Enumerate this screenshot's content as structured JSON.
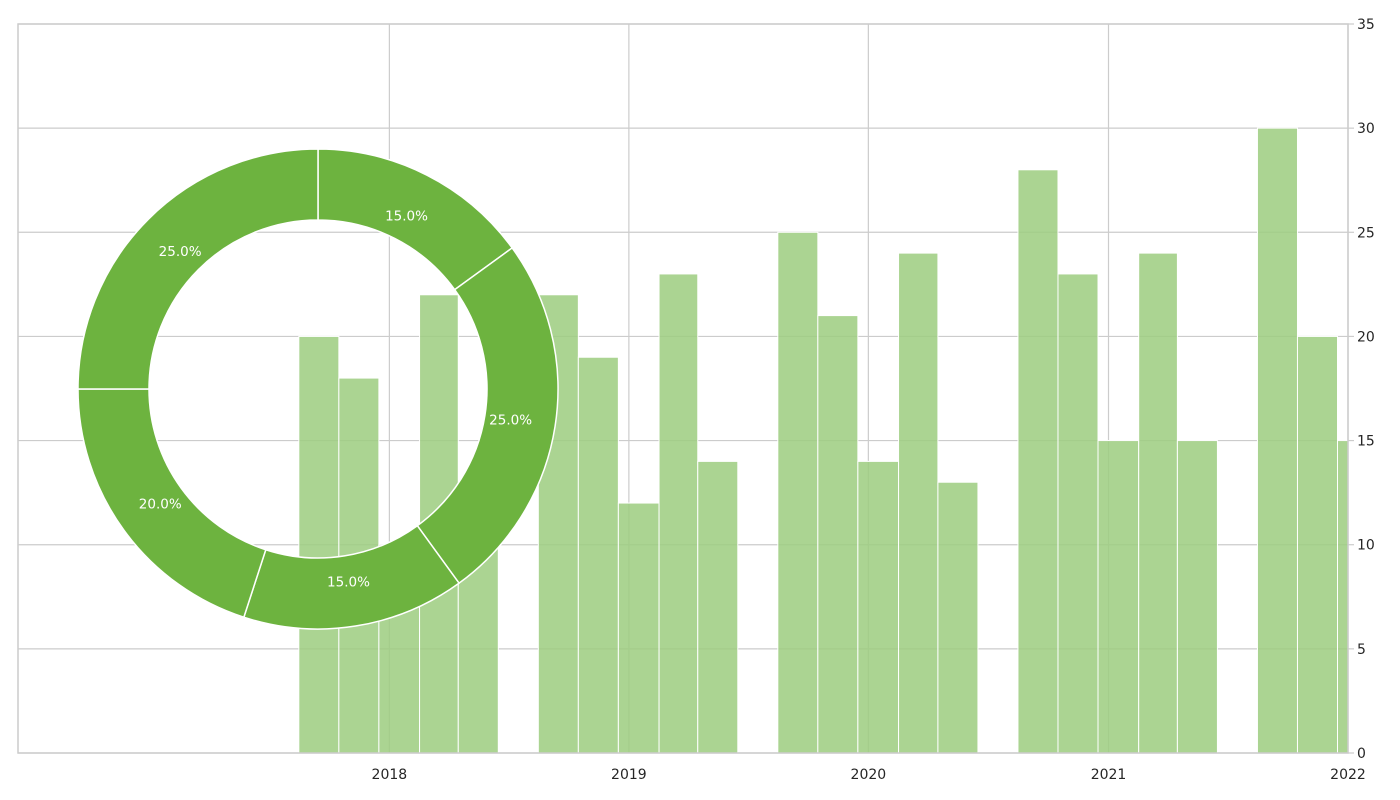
{
  "colors": {
    "bar_fill": "#9ccc7f",
    "donut_fill": "#6db33f",
    "grid": "#cccccc",
    "text": "#262626"
  },
  "chart_data": [
    {
      "type": "bar",
      "title": "",
      "xlabel": "",
      "ylabel": "",
      "x_axis": "date",
      "x_ticks": [
        "2018",
        "2019",
        "2020",
        "2021",
        "2022"
      ],
      "xlim": [
        "2016-06-14",
        "2022-01-01"
      ],
      "y_axis_side": "right",
      "ylim": [
        0,
        35
      ],
      "y_ticks": [
        0,
        5,
        10,
        15,
        20,
        25,
        30,
        35
      ],
      "grid": true,
      "bars": [
        {
          "start": "2017-08-16",
          "end": "2017-10-16",
          "value": 20
        },
        {
          "start": "2017-10-16",
          "end": "2017-12-16",
          "value": 18
        },
        {
          "start": "2017-12-16",
          "end": "2018-02-16",
          "value": 10
        },
        {
          "start": "2018-02-16",
          "end": "2018-04-16",
          "value": 22
        },
        {
          "start": "2018-04-16",
          "end": "2018-06-16",
          "value": 12
        },
        {
          "start": "2018-08-16",
          "end": "2018-10-16",
          "value": 22
        },
        {
          "start": "2018-10-16",
          "end": "2018-12-16",
          "value": 19
        },
        {
          "start": "2018-12-16",
          "end": "2019-02-16",
          "value": 12
        },
        {
          "start": "2019-02-16",
          "end": "2019-04-16",
          "value": 23
        },
        {
          "start": "2019-04-16",
          "end": "2019-06-16",
          "value": 14
        },
        {
          "start": "2019-08-16",
          "end": "2019-10-16",
          "value": 25
        },
        {
          "start": "2019-10-16",
          "end": "2019-12-16",
          "value": 21
        },
        {
          "start": "2019-12-16",
          "end": "2020-02-16",
          "value": 14
        },
        {
          "start": "2020-02-16",
          "end": "2020-04-16",
          "value": 24
        },
        {
          "start": "2020-04-16",
          "end": "2020-06-16",
          "value": 13
        },
        {
          "start": "2020-08-16",
          "end": "2020-10-16",
          "value": 28
        },
        {
          "start": "2020-10-16",
          "end": "2020-12-16",
          "value": 23
        },
        {
          "start": "2020-12-16",
          "end": "2021-02-16",
          "value": 15
        },
        {
          "start": "2021-02-16",
          "end": "2021-04-16",
          "value": 24
        },
        {
          "start": "2021-04-16",
          "end": "2021-06-16",
          "value": 15
        },
        {
          "start": "2021-08-16",
          "end": "2021-10-16",
          "value": 30
        },
        {
          "start": "2021-10-16",
          "end": "2021-12-16",
          "value": 20
        },
        {
          "start": "2021-12-16",
          "end": "2022-01-01",
          "value": 15
        }
      ]
    },
    {
      "type": "pie",
      "style": "donut",
      "title": "",
      "slices": [
        {
          "value": 15,
          "label": "15.0%"
        },
        {
          "value": 25,
          "label": "25.0%"
        },
        {
          "value": 15,
          "label": "15.0%"
        },
        {
          "value": 20,
          "label": "20.0%"
        },
        {
          "value": 25,
          "label": "25.0%"
        }
      ]
    }
  ]
}
